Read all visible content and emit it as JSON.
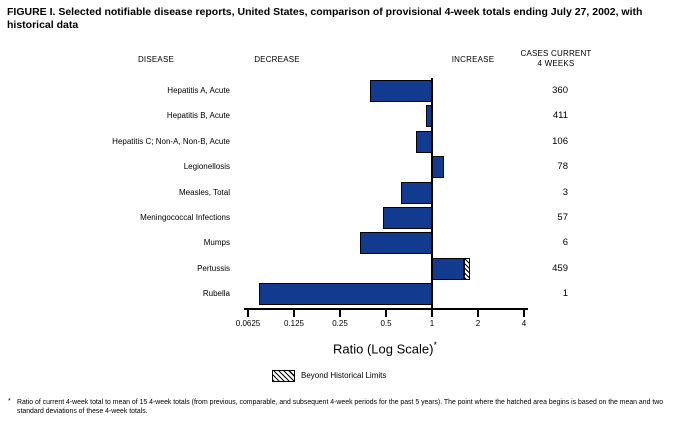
{
  "title": "FIGURE I. Selected notifiable disease reports, United States, comparison of provisional 4-week totals ending July 27, 2002, with historical data",
  "headers": {
    "disease": "DISEASE",
    "decrease": "DECREASE",
    "increase": "INCREASE",
    "cases_line1": "CASES CURRENT",
    "cases_line2": "4 WEEKS"
  },
  "chart_data": {
    "type": "bar",
    "orientation": "horizontal",
    "scale": "log2",
    "baseline": 1,
    "axis": {
      "label": "Ratio (Log Scale)",
      "label_superscript": "*",
      "ticks": [
        0.0625,
        0.125,
        0.25,
        0.5,
        1,
        2,
        4
      ],
      "tick_labels": [
        "0.0625",
        "0.125",
        "0.25",
        "0.5",
        "1",
        "2",
        "4"
      ]
    },
    "rows": [
      {
        "disease": "Hepatitis A, Acute",
        "ratio": 0.39,
        "cases": "360"
      },
      {
        "disease": "Hepatitis B, Acute",
        "ratio": 0.91,
        "cases": "411"
      },
      {
        "disease": "Hepatitis C; Non-A, Non-B, Acute",
        "ratio": 0.79,
        "cases": "106"
      },
      {
        "disease": "Legionellosis",
        "ratio": 1.19,
        "cases": "78"
      },
      {
        "disease": "Measles, Total",
        "ratio": 0.63,
        "cases": "3"
      },
      {
        "disease": "Meningococcal Infections",
        "ratio": 0.48,
        "cases": "57"
      },
      {
        "disease": "Mumps",
        "ratio": 0.34,
        "cases": "6"
      },
      {
        "disease": "Pertussis",
        "ratio": 1.63,
        "beyond_limit_ratio": 1.77,
        "cases": "459"
      },
      {
        "disease": "Rubella",
        "ratio": 0.074,
        "cases": "1"
      }
    ],
    "legend": {
      "swatch": "diagonal-hatch",
      "label": "Beyond Historical Limits"
    }
  },
  "colors": {
    "bar": "#123a8f",
    "bar_border": "#000000",
    "axis": "#000000",
    "background": "#ffffff"
  },
  "footnote": {
    "marker": "*",
    "text": "Ratio of current 4-week total to mean of 15 4-week totals (from previous, comparable, and subsequent 4-week periods for the past 5 years). The point where the hatched area begins is based on the mean and two standard deviations of these 4-week totals."
  }
}
